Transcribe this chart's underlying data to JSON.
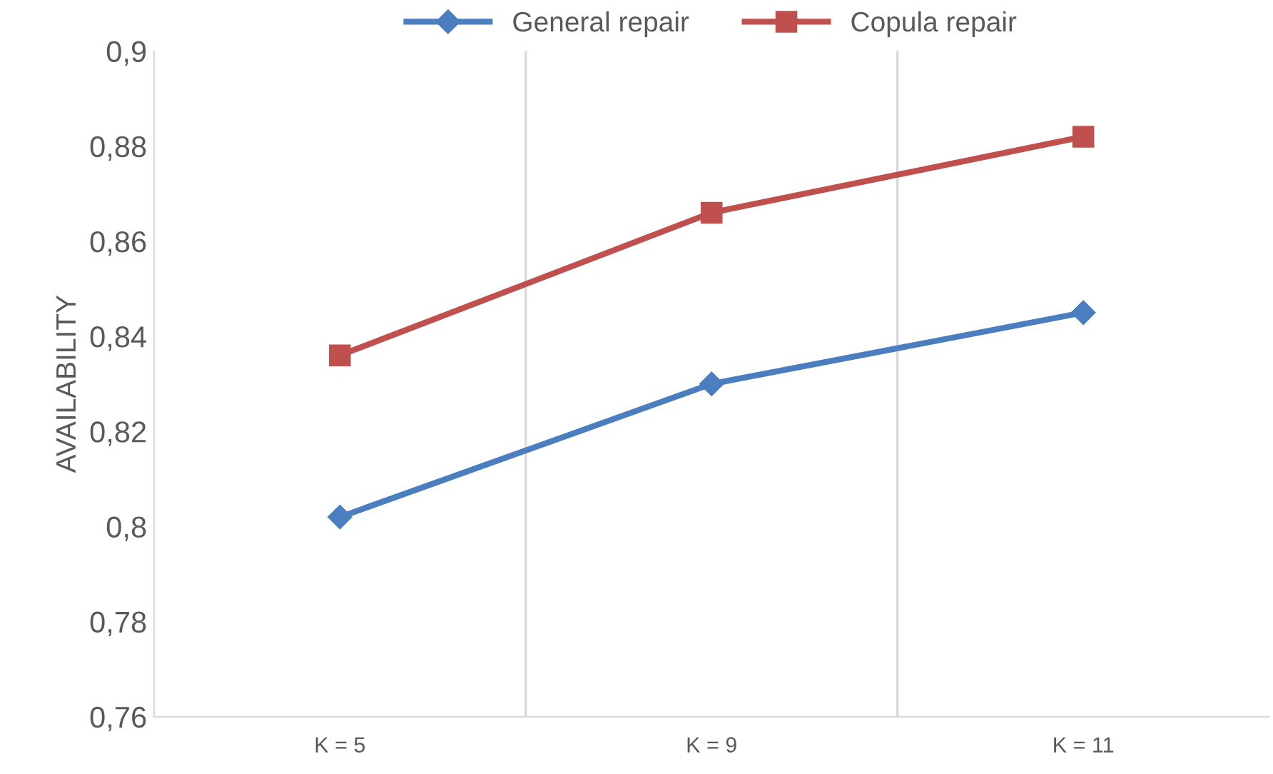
{
  "chart_data": {
    "type": "line",
    "ylabel": "AVAILABILITY",
    "categories": [
      "K = 5",
      "K = 9",
      "K = 11"
    ],
    "series": [
      {
        "name": "General repair",
        "color": "#4a7ebf",
        "values": [
          0.802,
          0.83,
          0.845
        ],
        "marker": "diamond"
      },
      {
        "name": "Copula repair",
        "color": "#c0504d",
        "values": [
          0.836,
          0.866,
          0.882
        ],
        "marker": "square"
      }
    ],
    "ylim": [
      0.76,
      0.9
    ],
    "yticks": [
      {
        "value": 0.76,
        "label": "0,76"
      },
      {
        "value": 0.78,
        "label": "0,78"
      },
      {
        "value": 0.8,
        "label": "0,8"
      },
      {
        "value": 0.82,
        "label": "0,82"
      },
      {
        "value": 0.84,
        "label": "0,84"
      },
      {
        "value": 0.86,
        "label": "0,86"
      },
      {
        "value": 0.88,
        "label": "0,88"
      },
      {
        "value": 0.9,
        "label": "0,9"
      }
    ],
    "grid": "x",
    "legend": "top",
    "line_style": "solid"
  }
}
